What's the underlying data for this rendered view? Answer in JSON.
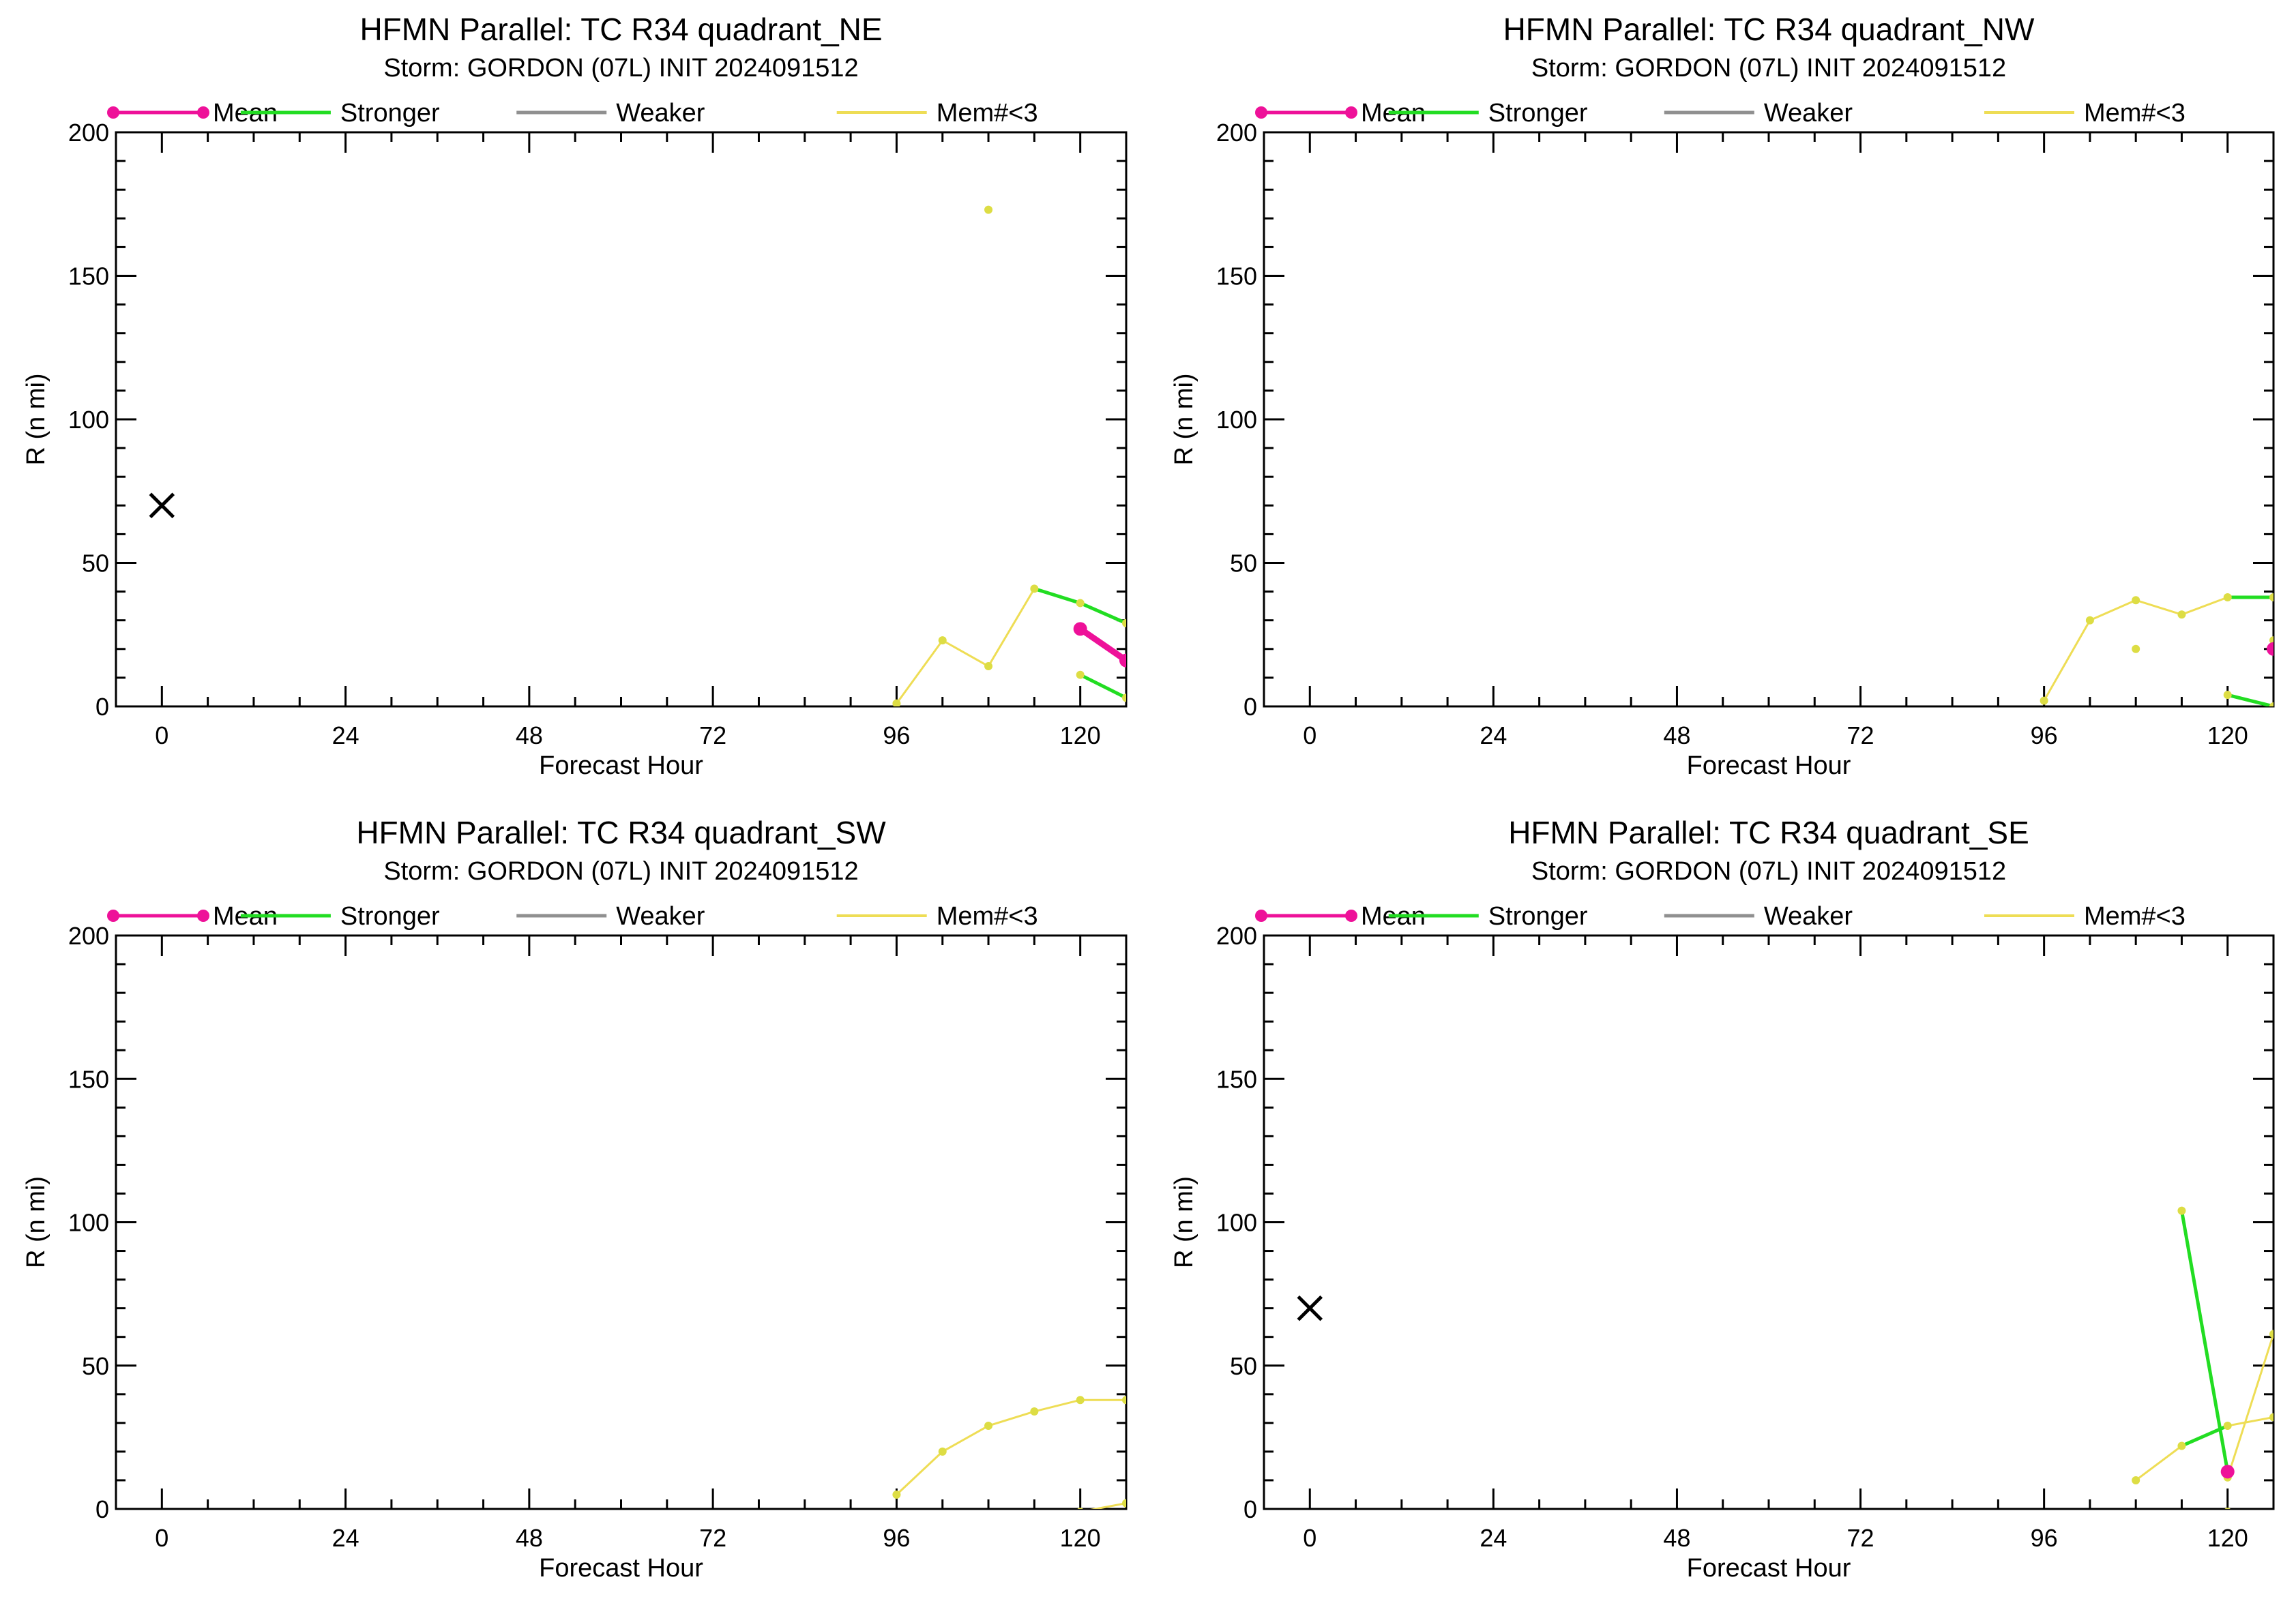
{
  "colors": {
    "mean": "#ee1199",
    "stronger": "#22dd22",
    "weaker": "#909090",
    "few_members": "#eedd55",
    "few_members_points": "#dddd44",
    "axes": "#000000"
  },
  "legend": {
    "mean": "Mean",
    "stronger": "Stronger",
    "weaker": "Weaker",
    "few_members": "Mem#<3"
  },
  "chart_data": [
    {
      "type": "line",
      "title": "HFMN Parallel: TC  R34 quadrant_NE",
      "subtitle": "Storm: GORDON (07L) INIT 2024091512",
      "xlabel": "Forecast Hour",
      "ylabel": "R (n mi)",
      "xlim": [
        -6,
        126
      ],
      "ylim": [
        0,
        200
      ],
      "xticks": [
        0,
        24,
        48,
        72,
        96,
        120
      ],
      "yticks": [
        0,
        50,
        100,
        150,
        200
      ],
      "legend_position": "top",
      "grid": false,
      "observed_x": {
        "x": 0,
        "y": 70
      },
      "few_members_lines": [
        {
          "x": [
            96,
            102,
            108,
            114
          ],
          "y": [
            1,
            23,
            14,
            41
          ]
        }
      ],
      "few_members_points": [
        {
          "x": 96,
          "y": 1
        },
        {
          "x": 102,
          "y": 23
        },
        {
          "x": 108,
          "y": 14
        },
        {
          "x": 114,
          "y": 41
        },
        {
          "x": 108,
          "y": 173
        },
        {
          "x": 120,
          "y": 36
        },
        {
          "x": 126,
          "y": 29
        },
        {
          "x": 120,
          "y": 11
        },
        {
          "x": 126,
          "y": 3
        }
      ],
      "stronger_lines": [
        {
          "x": [
            114,
            120,
            126
          ],
          "y": [
            41,
            36,
            29
          ]
        },
        {
          "x": [
            120,
            126
          ],
          "y": [
            11,
            3
          ]
        }
      ],
      "mean_series": {
        "x": [
          120,
          126
        ],
        "y": [
          27,
          16
        ]
      }
    },
    {
      "type": "line",
      "title": "HFMN Parallel: TC  R34 quadrant_NW",
      "subtitle": "Storm: GORDON (07L) INIT 2024091512",
      "xlabel": "Forecast Hour",
      "ylabel": "R (n mi)",
      "xlim": [
        -6,
        126
      ],
      "ylim": [
        0,
        200
      ],
      "xticks": [
        0,
        24,
        48,
        72,
        96,
        120
      ],
      "yticks": [
        0,
        50,
        100,
        150,
        200
      ],
      "legend_position": "top",
      "grid": false,
      "few_members_lines": [
        {
          "x": [
            96,
            102,
            108,
            114,
            120
          ],
          "y": [
            2,
            30,
            37,
            32,
            38
          ]
        }
      ],
      "few_members_points": [
        {
          "x": 96,
          "y": 2
        },
        {
          "x": 102,
          "y": 30
        },
        {
          "x": 108,
          "y": 37
        },
        {
          "x": 114,
          "y": 32
        },
        {
          "x": 120,
          "y": 38
        },
        {
          "x": 108,
          "y": 20
        },
        {
          "x": 126,
          "y": 38
        },
        {
          "x": 126,
          "y": 23
        },
        {
          "x": 120,
          "y": 4
        },
        {
          "x": 126,
          "y": 0
        }
      ],
      "stronger_lines": [
        {
          "x": [
            120,
            126
          ],
          "y": [
            38,
            38
          ]
        },
        {
          "x": [
            120,
            126
          ],
          "y": [
            4,
            0
          ]
        }
      ],
      "mean_series": {
        "x": [
          126
        ],
        "y": [
          20
        ]
      }
    },
    {
      "type": "line",
      "title": "HFMN Parallel: TC  R34 quadrant_SW",
      "subtitle": "Storm: GORDON (07L) INIT 2024091512",
      "xlabel": "Forecast Hour",
      "ylabel": "R (n mi)",
      "xlim": [
        -6,
        126
      ],
      "ylim": [
        0,
        200
      ],
      "xticks": [
        0,
        24,
        48,
        72,
        96,
        120
      ],
      "yticks": [
        0,
        50,
        100,
        150,
        200
      ],
      "legend_position": "top",
      "grid": false,
      "few_members_lines": [
        {
          "x": [
            96,
            102,
            108,
            114,
            120,
            126
          ],
          "y": [
            5,
            20,
            29,
            34,
            38,
            38
          ]
        },
        {
          "x": [
            120,
            126
          ],
          "y": [
            -1,
            2
          ]
        }
      ],
      "few_members_points": [
        {
          "x": 96,
          "y": 5
        },
        {
          "x": 102,
          "y": 20
        },
        {
          "x": 108,
          "y": 29
        },
        {
          "x": 114,
          "y": 34
        },
        {
          "x": 120,
          "y": 38
        },
        {
          "x": 126,
          "y": 38
        },
        {
          "x": 120,
          "y": -1
        },
        {
          "x": 126,
          "y": 2
        }
      ],
      "stronger_lines": [],
      "mean_series": {
        "x": [],
        "y": []
      }
    },
    {
      "type": "line",
      "title": "HFMN Parallel: TC  R34 quadrant_SE",
      "subtitle": "Storm: GORDON (07L) INIT 2024091512",
      "xlabel": "Forecast Hour",
      "ylabel": "R (n mi)",
      "xlim": [
        -6,
        126
      ],
      "ylim": [
        0,
        200
      ],
      "xticks": [
        0,
        24,
        48,
        72,
        96,
        120
      ],
      "yticks": [
        0,
        50,
        100,
        150,
        200
      ],
      "legend_position": "top",
      "grid": false,
      "observed_x": {
        "x": 0,
        "y": 70
      },
      "few_members_lines": [
        {
          "x": [
            108,
            114
          ],
          "y": [
            10,
            22
          ]
        },
        {
          "x": [
            120,
            126
          ],
          "y": [
            29,
            32
          ]
        },
        {
          "x": [
            120,
            126
          ],
          "y": [
            11,
            61
          ]
        }
      ],
      "few_members_points": [
        {
          "x": 108,
          "y": 10
        },
        {
          "x": 114,
          "y": 22
        },
        {
          "x": 114,
          "y": 104
        },
        {
          "x": 120,
          "y": 29
        },
        {
          "x": 126,
          "y": 32
        },
        {
          "x": 126,
          "y": 61
        },
        {
          "x": 120,
          "y": 11
        },
        {
          "x": 120,
          "y": -1
        }
      ],
      "stronger_lines": [
        {
          "x": [
            114,
            120
          ],
          "y": [
            22,
            29
          ]
        },
        {
          "x": [
            114,
            120
          ],
          "y": [
            104,
            13
          ]
        }
      ],
      "mean_series": {
        "x": [
          120
        ],
        "y": [
          13
        ]
      }
    }
  ]
}
